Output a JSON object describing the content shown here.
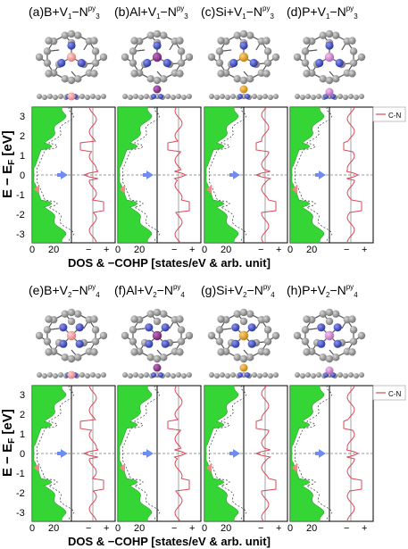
{
  "colors": {
    "dos_fill": "#35d535",
    "cohp_line": "#d84a5a",
    "carbon": "#8c8c8c",
    "nitrogen": "#3b46c8",
    "boron": "#f29c9c",
    "aluminum": "#8a2d8a",
    "silicon": "#e8a020",
    "phosphorus": "#d48ad4",
    "arrow_blue": "#6f8cf0",
    "arrow_pink": "#f08a8a"
  },
  "rows": [
    {
      "panels": [
        {
          "prefix": "(a)",
          "formula": "B+V",
          "sub1": "1",
          "mid": "−N",
          "sup": "py",
          "sub2": "3",
          "dopant": "boron"
        },
        {
          "prefix": "(b)",
          "formula": "Al+V",
          "sub1": "1",
          "mid": "−N",
          "sup": "py",
          "sub2": "3",
          "dopant": "aluminum"
        },
        {
          "prefix": "(c)",
          "formula": "Si+V",
          "sub1": "1",
          "mid": "−N",
          "sup": "py",
          "sub2": "3",
          "dopant": "silicon"
        },
        {
          "prefix": "(d)",
          "formula": "P+V",
          "sub1": "1",
          "mid": "−N",
          "sup": "py",
          "sub2": "3",
          "dopant": "phosphorus"
        }
      ],
      "y_axis_label": "E − E",
      "y_axis_sub": "F",
      "y_axis_unit": " [eV]",
      "y_ticks": [
        "3",
        "2",
        "1",
        "0",
        "-1",
        "-2",
        "-3"
      ],
      "x_ticks": [
        "0",
        "20",
        "−",
        "+"
      ],
      "x_axis_label": "DOS  &  −COHP  [states/eV & arb. unit]",
      "legend": "C-N"
    },
    {
      "panels": [
        {
          "prefix": "(e)",
          "formula": "B+V",
          "sub1": "2",
          "mid": "−N",
          "sup": "py",
          "sub2": "4",
          "dopant": "boron"
        },
        {
          "prefix": "(f)",
          "formula": "Al+V",
          "sub1": "2",
          "mid": "−N",
          "sup": "py",
          "sub2": "4",
          "dopant": "aluminum"
        },
        {
          "prefix": "(g)",
          "formula": "Si+V",
          "sub1": "2",
          "mid": "−N",
          "sup": "py",
          "sub2": "4",
          "dopant": "silicon"
        },
        {
          "prefix": "(h)",
          "formula": "P+V",
          "sub1": "2",
          "mid": "−N",
          "sup": "py",
          "sub2": "4",
          "dopant": "phosphorus"
        }
      ],
      "y_axis_label": "E − E",
      "y_axis_sub": "F",
      "y_axis_unit": " [eV]",
      "y_ticks": [
        "3",
        "2",
        "1",
        "0",
        "-1",
        "-2",
        "-3"
      ],
      "x_ticks": [
        "0",
        "20",
        "−",
        "+"
      ],
      "x_axis_label": "DOS  &  −COHP  [states/eV & arb. unit]",
      "legend": "C-N"
    }
  ]
}
